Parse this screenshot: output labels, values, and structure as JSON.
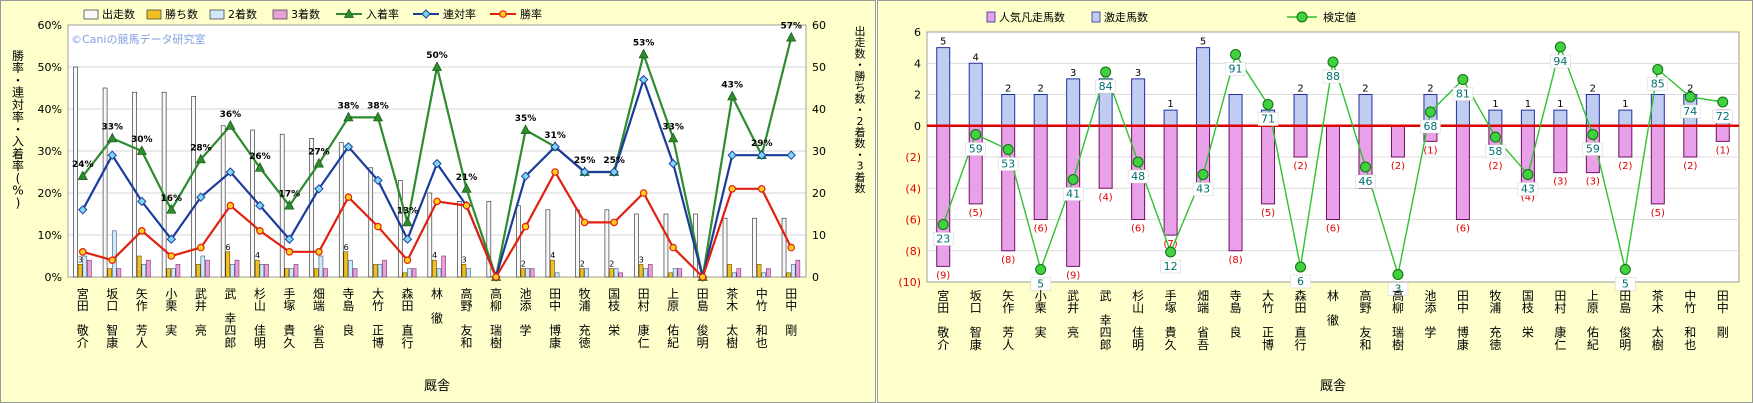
{
  "trainers": [
    "宮田 敬介",
    "坂口 智康",
    "矢作 芳人",
    "小栗 実",
    "武井 亮",
    "武 幸四郎",
    "杉山 佳明",
    "手塚 貴久",
    "畑端 省吾",
    "寺島 良",
    "大竹 正博",
    "森田 直行",
    "林 徹",
    "高野 友和",
    "高柳 瑞樹",
    "池添 学",
    "田中 博康",
    "牧浦 充徳",
    "国枝 栄",
    "田村 康仁",
    "上原 佑紀",
    "田島 俊明",
    "茶木 太樹",
    "中竹 和也",
    "田中 剛"
  ],
  "chart_data": [
    {
      "type": "bar+line",
      "watermark": "©Caniの競馬データ研究室",
      "xlabel": "厩舎",
      "ylabel_left": "勝率・連対率・入着率(%)",
      "ylabel_right": "出走数・勝ち数・2着数・3着数",
      "ylim_left": [
        0,
        60
      ],
      "ylim_right": [
        0,
        60
      ],
      "yticks_left": [
        "0%",
        "10%",
        "20%",
        "30%",
        "40%",
        "50%",
        "60%"
      ],
      "yticks_right": [
        "0",
        "10",
        "20",
        "30",
        "40",
        "50",
        "60"
      ],
      "legend": [
        "出走数",
        "勝ち数",
        "2着数",
        "3着数",
        "入着率",
        "連対率",
        "勝率"
      ],
      "colors": {
        "starts": "#f8f8f8",
        "wins": "#f0c020",
        "second": "#d0e8f8",
        "third": "#e8a0d8",
        "placeRate": "#2e8b2e",
        "top2Rate": "#1c3c9c",
        "winRate": "#e02010"
      },
      "bars": {
        "starts": [
          50,
          45,
          44,
          44,
          43,
          36,
          35,
          34,
          33,
          32,
          26,
          23,
          20,
          18,
          18,
          17,
          16,
          16,
          16,
          15,
          15,
          15,
          14,
          14,
          14
        ],
        "wins": [
          3,
          2,
          5,
          2,
          3,
          6,
          4,
          2,
          2,
          6,
          3,
          1,
          4,
          3,
          0,
          2,
          4,
          2,
          2,
          3,
          1,
          0,
          3,
          3,
          1
        ],
        "second": [
          5,
          11,
          3,
          2,
          5,
          3,
          3,
          2,
          5,
          4,
          3,
          2,
          2,
          2,
          0,
          2,
          1,
          2,
          2,
          2,
          2,
          0,
          1,
          1,
          3
        ],
        "third": [
          4,
          2,
          4,
          3,
          4,
          4,
          3,
          3,
          2,
          2,
          4,
          2,
          5,
          0,
          0,
          2,
          0,
          0,
          1,
          3,
          2,
          0,
          2,
          2,
          4
        ]
      },
      "bar_labels": {
        "starts": [
          "",
          "",
          "",
          "",
          "",
          "",
          "",
          "",
          "",
          "",
          "",
          "",
          "",
          "",
          "",
          "",
          "",
          "",
          "",
          "",
          "",
          "",
          "",
          "",
          ""
        ],
        "wins": [
          "3",
          "",
          "",
          "",
          "",
          "6",
          "4",
          "",
          "",
          "6",
          "",
          "",
          "4",
          "3",
          "",
          "2",
          "4",
          "2",
          "2",
          "3",
          "",
          "",
          "",
          "",
          ""
        ],
        "second": [
          "",
          "",
          "",
          "",
          "",
          "",
          "",
          "",
          "",
          "",
          "",
          "",
          "",
          "",
          "",
          "",
          "",
          "",
          "",
          "",
          "",
          "",
          "",
          "",
          ""
        ],
        "third": [
          "",
          "",
          "",
          "",
          "",
          "",
          "",
          "",
          "",
          "",
          "",
          "",
          "",
          "",
          "",
          "",
          "",
          "",
          "",
          "",
          "",
          "",
          "",
          "",
          ""
        ]
      },
      "lines": {
        "placeRate": [
          24,
          33,
          30,
          16,
          28,
          36,
          26,
          17,
          27,
          38,
          38,
          13,
          50,
          21,
          0,
          35,
          31,
          25,
          25,
          53,
          33,
          0,
          43,
          29,
          57
        ],
        "top2Rate": [
          16,
          29,
          18,
          9,
          19,
          25,
          17,
          9,
          21,
          31,
          23,
          9,
          27,
          17,
          0,
          24,
          31,
          25,
          25,
          47,
          27,
          0,
          29,
          29,
          29
        ],
        "winRate": [
          6,
          4,
          11,
          5,
          7,
          17,
          11,
          6,
          6,
          19,
          12,
          4,
          18,
          17,
          0,
          12,
          25,
          13,
          13,
          20,
          7,
          0,
          21,
          21,
          7
        ]
      },
      "line_labels": {
        "placeRate": [
          "24%",
          "33%",
          "30%",
          "16%",
          "28%",
          "36%",
          "26%",
          "17%",
          "27%",
          "38%",
          "38%",
          "13%",
          "50%",
          "21%",
          "",
          "35%",
          "31%",
          "25%",
          "25%",
          "53%",
          "33%",
          "",
          "43%",
          "29%",
          "57%"
        ]
      }
    },
    {
      "type": "bar+line",
      "xlabel": "厩舎",
      "ylim": [
        -10,
        6
      ],
      "yticks": [
        "(10)",
        "(8)",
        "(6)",
        "(4)",
        "(2)",
        "0",
        "2",
        "4",
        "6"
      ],
      "legend": [
        "人気凡走馬数",
        "激走馬数",
        "検定値"
      ],
      "colors": {
        "popular": "#e8a0e8",
        "dark": "#c0ccf0",
        "value": "#30c030",
        "zero": "#e00000"
      },
      "bars": {
        "dark": [
          5,
          4,
          2,
          2,
          3,
          3,
          3,
          1,
          5,
          2,
          1,
          2,
          0,
          2,
          0,
          2,
          2,
          1,
          1,
          1,
          2,
          1,
          2,
          2,
          1
        ],
        "popular": [
          -9,
          -5,
          -8,
          -6,
          -9,
          -4,
          -6,
          -7,
          -4,
          -8,
          -5,
          -2,
          -6,
          -4,
          -2,
          -1,
          -6,
          -2,
          -4,
          -3,
          -3,
          -2,
          -5,
          -2,
          -1
        ]
      },
      "bar_labels": {
        "dark": [
          "5",
          "4",
          "2",
          "2",
          "3",
          "3",
          "3",
          "1",
          "5",
          "",
          "",
          "2",
          "",
          "2",
          "",
          "2",
          "",
          "1",
          "1",
          "1",
          "2",
          "1",
          "",
          "2",
          ""
        ],
        "popular": [
          "(9)",
          "(5)",
          "(8)",
          "(6)",
          "(9)",
          "(4)",
          "(6)",
          "(7)",
          "",
          "(8)",
          "(5)",
          "(2)",
          "(6)",
          "",
          "(2)",
          "(1)",
          "(6)",
          "(2)",
          "(4)",
          "(3)",
          "(3)",
          "(2)",
          "(5)",
          "(2)",
          "(1)"
        ]
      },
      "values": [
        23,
        59,
        53,
        5,
        41,
        84,
        48,
        12,
        43,
        91,
        71,
        6,
        88,
        46,
        3,
        68,
        81,
        58,
        43,
        94,
        59,
        5,
        85,
        74,
        72
      ],
      "value_labels": [
        "23",
        "59",
        "53",
        "5",
        "41",
        "84",
        "48",
        "12",
        "43",
        "91",
        "71",
        "6",
        "88",
        "46",
        "3",
        "68",
        "81",
        "58",
        "43",
        "94",
        "59",
        "5",
        "85",
        "74",
        "72"
      ]
    }
  ]
}
